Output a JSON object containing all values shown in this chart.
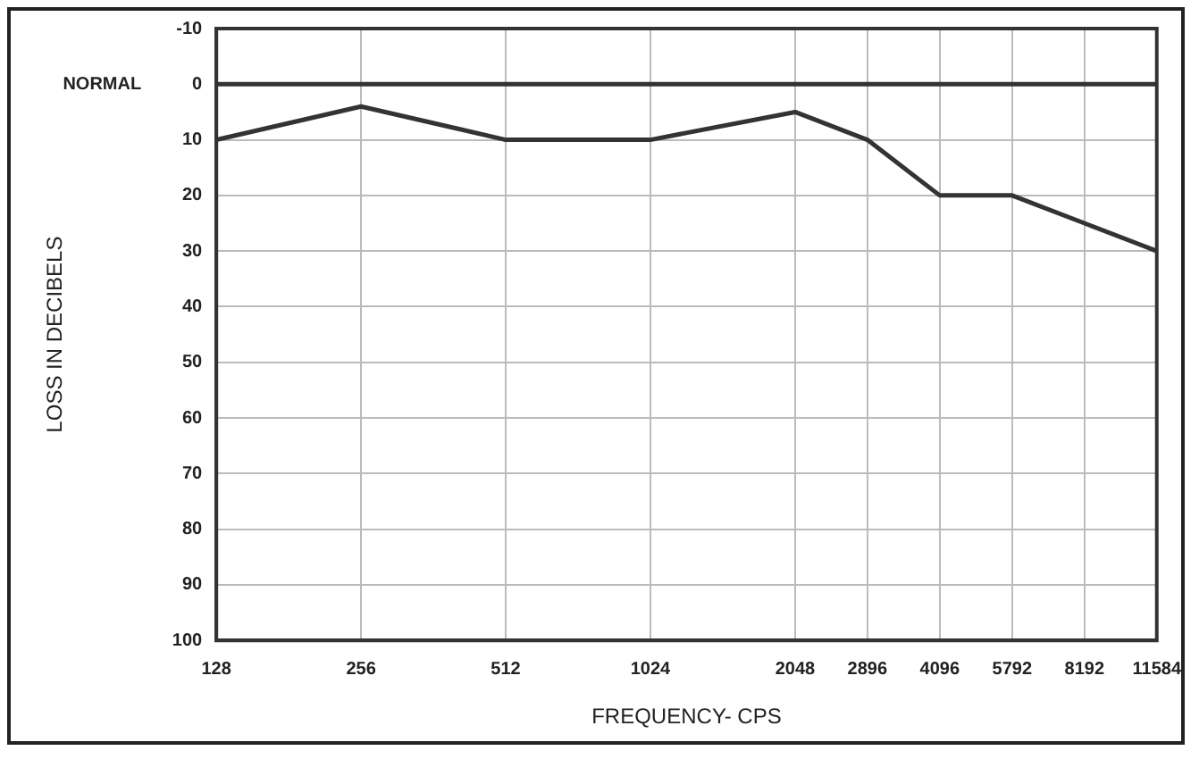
{
  "chart_data": {
    "type": "line",
    "xlabel": "FREQUENCY- CPS",
    "ylabel": "LOSS IN DECIBELS",
    "log": "x",
    "x": [
      128,
      256,
      512,
      1024,
      2048,
      2896,
      4096,
      5792,
      8192,
      11584
    ],
    "series": [
      {
        "color": "#333333",
        "values": [
          10,
          4,
          10,
          10,
          5,
          10,
          20,
          20,
          25,
          30
        ]
      }
    ],
    "xlim": [
      128,
      11584
    ],
    "xticks": [
      128,
      256,
      512,
      1024,
      2048,
      2896,
      4096,
      5792,
      8192,
      11584
    ],
    "ylim": [
      100,
      -10
    ],
    "yticks": [
      -10,
      0,
      10,
      20,
      30,
      40,
      50,
      60,
      70,
      80,
      90,
      100
    ],
    "ref_lines": [
      {
        "axis": "y",
        "value": 0,
        "label": "NORMAL",
        "color": "#333333"
      }
    ],
    "grid": true,
    "legend": false,
    "marker": "none",
    "line_style": "solid"
  }
}
